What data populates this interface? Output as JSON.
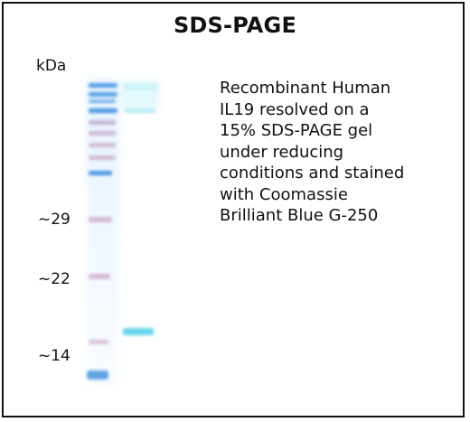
{
  "title": "SDS-PAGE",
  "axis_unit": "kDa",
  "markers": [
    {
      "label": "~29"
    },
    {
      "label": "~22"
    },
    {
      "label": "~14"
    }
  ],
  "caption_lines": [
    "Recombinant Human",
    "IL19 resolved on a",
    "15% SDS-PAGE gel",
    "under reducing",
    "conditions and stained",
    "with Coomassie",
    "Brilliant Blue G-250"
  ],
  "colors": {
    "ladder_blue": "#3b8fe0",
    "ladder_pink": "#c9a6c6",
    "sample_band": "#5fd4ee",
    "border": "#111111"
  }
}
